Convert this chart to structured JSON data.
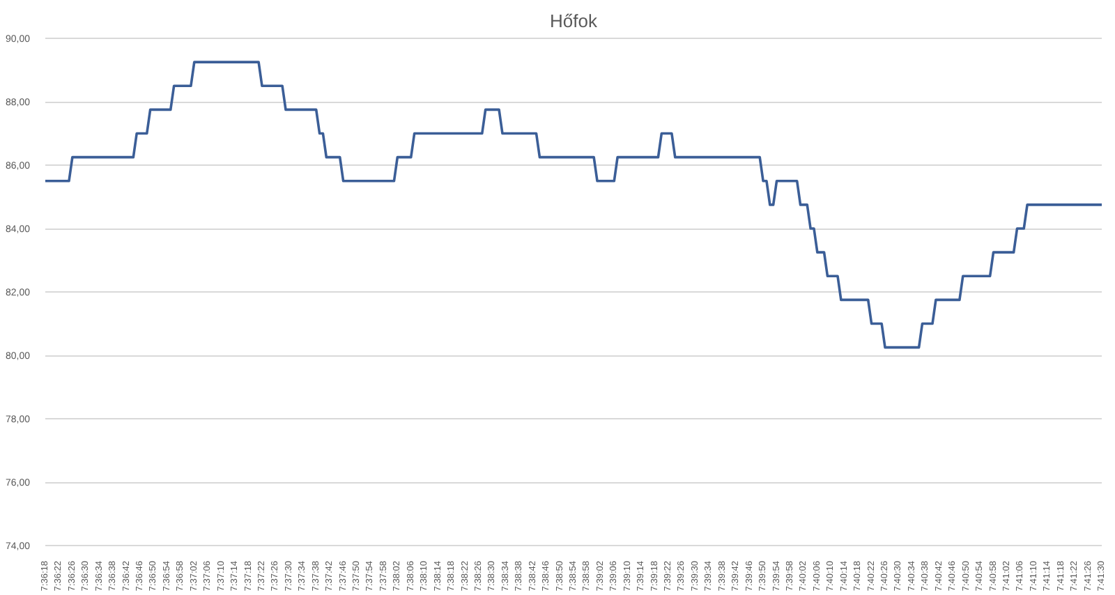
{
  "chart_data": {
    "type": "line",
    "title": "Hőfok",
    "x": [
      7.605,
      7.606944,
      7.607222,
      7.612222,
      7.6125,
      7.613333,
      7.613611,
      7.615278,
      7.615556,
      7.616944,
      7.617222,
      7.6225,
      7.622778,
      7.624444,
      7.624722,
      7.627222,
      7.6275,
      7.627778,
      7.628056,
      7.629167,
      7.629444,
      7.633611,
      7.633889,
      7.635,
      7.635278,
      7.640833,
      7.641111,
      7.642222,
      7.6425,
      7.645278,
      7.645556,
      7.65,
      7.650278,
      7.651667,
      7.651944,
      7.655278,
      7.655556,
      7.656389,
      7.656667,
      7.663611,
      7.663889,
      7.664167,
      7.664444,
      7.664722,
      7.665,
      7.666667,
      7.666944,
      7.6675,
      7.667778,
      7.668056,
      7.668333,
      7.668889,
      7.669167,
      7.67,
      7.670278,
      7.6725,
      7.672778,
      7.673611,
      7.673889,
      7.676667,
      7.676944,
      7.677778,
      7.678056,
      7.68,
      7.680278,
      7.6825,
      7.682778,
      7.684444,
      7.684722,
      7.685278,
      7.685556,
      7.691667
    ],
    "series": [
      {
        "color": "#3b5e97",
        "values": [
          85.5,
          85.5,
          86.25,
          86.25,
          87,
          87,
          87.75,
          87.75,
          88.5,
          88.5,
          89.25,
          89.25,
          88.5,
          88.5,
          87.75,
          87.75,
          87,
          87,
          86.25,
          86.25,
          85.5,
          85.5,
          86.25,
          86.25,
          87,
          87,
          87.75,
          87.75,
          87,
          87,
          86.25,
          86.25,
          85.5,
          85.5,
          86.25,
          86.25,
          87,
          87,
          86.25,
          86.25,
          85.5,
          85.5,
          84.75,
          84.75,
          85.5,
          85.5,
          84.75,
          84.75,
          84,
          84,
          83.25,
          83.25,
          82.5,
          82.5,
          81.75,
          81.75,
          81,
          81,
          80.25,
          80.25,
          81,
          81,
          81.75,
          81.75,
          82.5,
          82.5,
          83.25,
          83.25,
          84,
          84,
          84.75,
          84.75
        ]
      }
    ],
    "xlim": [
      7.605,
      7.691667
    ],
    "xticks": [
      {
        "value": 7.605,
        "label": "7:36:18"
      },
      {
        "value": 7.606111,
        "label": "7:36:22"
      },
      {
        "value": 7.607222,
        "label": "7:36:26"
      },
      {
        "value": 7.608333,
        "label": "7:36:30"
      },
      {
        "value": 7.609444,
        "label": "7:36:34"
      },
      {
        "value": 7.610556,
        "label": "7:36:38"
      },
      {
        "value": 7.611667,
        "label": "7:36:42"
      },
      {
        "value": 7.612778,
        "label": "7:36:46"
      },
      {
        "value": 7.613889,
        "label": "7:36:50"
      },
      {
        "value": 7.615,
        "label": "7:36:54"
      },
      {
        "value": 7.616111,
        "label": "7:36:58"
      },
      {
        "value": 7.617222,
        "label": "7:37:02"
      },
      {
        "value": 7.618333,
        "label": "7:37:06"
      },
      {
        "value": 7.619444,
        "label": "7:37:10"
      },
      {
        "value": 7.620556,
        "label": "7:37:14"
      },
      {
        "value": 7.621667,
        "label": "7:37:18"
      },
      {
        "value": 7.622778,
        "label": "7:37:22"
      },
      {
        "value": 7.623889,
        "label": "7:37:26"
      },
      {
        "value": 7.625,
        "label": "7:37:30"
      },
      {
        "value": 7.626111,
        "label": "7:37:34"
      },
      {
        "value": 7.627222,
        "label": "7:37:38"
      },
      {
        "value": 7.628333,
        "label": "7:37:42"
      },
      {
        "value": 7.629444,
        "label": "7:37:46"
      },
      {
        "value": 7.630556,
        "label": "7:37:50"
      },
      {
        "value": 7.631667,
        "label": "7:37:54"
      },
      {
        "value": 7.632778,
        "label": "7:37:58"
      },
      {
        "value": 7.633889,
        "label": "7:38:02"
      },
      {
        "value": 7.635,
        "label": "7:38:06"
      },
      {
        "value": 7.636111,
        "label": "7:38:10"
      },
      {
        "value": 7.637222,
        "label": "7:38:14"
      },
      {
        "value": 7.638333,
        "label": "7:38:18"
      },
      {
        "value": 7.639444,
        "label": "7:38:22"
      },
      {
        "value": 7.640556,
        "label": "7:38:26"
      },
      {
        "value": 7.641667,
        "label": "7:38:30"
      },
      {
        "value": 7.642778,
        "label": "7:38:34"
      },
      {
        "value": 7.643889,
        "label": "7:38:38"
      },
      {
        "value": 7.645,
        "label": "7:38:42"
      },
      {
        "value": 7.646111,
        "label": "7:38:46"
      },
      {
        "value": 7.647222,
        "label": "7:38:50"
      },
      {
        "value": 7.648333,
        "label": "7:38:54"
      },
      {
        "value": 7.649444,
        "label": "7:38:58"
      },
      {
        "value": 7.650556,
        "label": "7:39:02"
      },
      {
        "value": 7.651667,
        "label": "7:39:06"
      },
      {
        "value": 7.652778,
        "label": "7:39:10"
      },
      {
        "value": 7.653889,
        "label": "7:39:14"
      },
      {
        "value": 7.655,
        "label": "7:39:18"
      },
      {
        "value": 7.656111,
        "label": "7:39:22"
      },
      {
        "value": 7.657222,
        "label": "7:39:26"
      },
      {
        "value": 7.658333,
        "label": "7:39:30"
      },
      {
        "value": 7.659444,
        "label": "7:39:34"
      },
      {
        "value": 7.660556,
        "label": "7:39:38"
      },
      {
        "value": 7.661667,
        "label": "7:39:42"
      },
      {
        "value": 7.662778,
        "label": "7:39:46"
      },
      {
        "value": 7.663889,
        "label": "7:39:50"
      },
      {
        "value": 7.665,
        "label": "7:39:54"
      },
      {
        "value": 7.666111,
        "label": "7:39:58"
      },
      {
        "value": 7.667222,
        "label": "7:40:02"
      },
      {
        "value": 7.668333,
        "label": "7:40:06"
      },
      {
        "value": 7.669444,
        "label": "7:40:10"
      },
      {
        "value": 7.670556,
        "label": "7:40:14"
      },
      {
        "value": 7.671667,
        "label": "7:40:18"
      },
      {
        "value": 7.672778,
        "label": "7:40:22"
      },
      {
        "value": 7.673889,
        "label": "7:40:26"
      },
      {
        "value": 7.675,
        "label": "7:40:30"
      },
      {
        "value": 7.676111,
        "label": "7:40:34"
      },
      {
        "value": 7.677222,
        "label": "7:40:38"
      },
      {
        "value": 7.678333,
        "label": "7:40:42"
      },
      {
        "value": 7.679444,
        "label": "7:40:46"
      },
      {
        "value": 7.680556,
        "label": "7:40:50"
      },
      {
        "value": 7.681667,
        "label": "7:40:54"
      },
      {
        "value": 7.682778,
        "label": "7:40:58"
      },
      {
        "value": 7.683889,
        "label": "7:41:02"
      },
      {
        "value": 7.685,
        "label": "7:41:06"
      },
      {
        "value": 7.686111,
        "label": "7:41:10"
      },
      {
        "value": 7.687222,
        "label": "7:41:14"
      },
      {
        "value": 7.688333,
        "label": "7:41:18"
      },
      {
        "value": 7.689444,
        "label": "7:41:22"
      },
      {
        "value": 7.690556,
        "label": "7:41:26"
      },
      {
        "value": 7.691667,
        "label": "7:41:30"
      }
    ],
    "ylim": [
      74,
      90
    ],
    "yticks": [
      {
        "value": 74,
        "label": "74,00"
      },
      {
        "value": 76,
        "label": "76,00"
      },
      {
        "value": 78,
        "label": "78,00"
      },
      {
        "value": 80,
        "label": "80,00"
      },
      {
        "value": 82,
        "label": "82,00"
      },
      {
        "value": 84,
        "label": "84,00"
      },
      {
        "value": 86,
        "label": "86,00"
      },
      {
        "value": 88,
        "label": "88,00"
      },
      {
        "value": 90,
        "label": "90,00"
      }
    ],
    "grid": "y"
  }
}
